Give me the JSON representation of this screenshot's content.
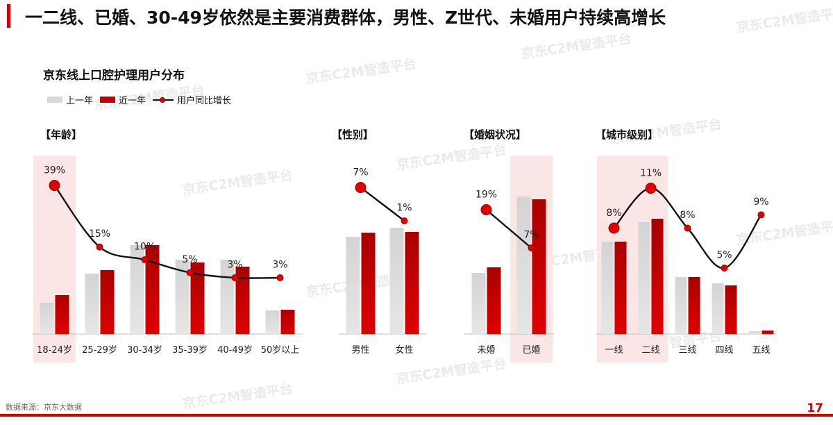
{
  "page_title": "一二线、已婚、30-49岁依然是主要消费群体，男性、Z世代、未婚用户持续高增长",
  "chart_title": "京东线上口腔护理用户分布",
  "watermark_text": "京东C2M智造平台",
  "legend": [
    {
      "label": "上一年",
      "color": "#d9d9d9"
    },
    {
      "label": "近一年",
      "color": "#c00000"
    },
    {
      "label": "用户同比增长",
      "color": "#111111"
    }
  ],
  "source": "数据来源：京东大数据",
  "page_number": "17",
  "colors": {
    "prev": "#d9d9d9",
    "curr": "#c00000",
    "highlight": "#fbe6e6",
    "marker": "#e00000"
  },
  "chart_data": [
    {
      "type": "bar",
      "title": "【年龄】",
      "categories": [
        "18-24岁",
        "25-29岁",
        "30-34岁",
        "35-39岁",
        "40-49岁",
        "50岁以上"
      ],
      "series": [
        {
          "name": "上一年",
          "values": [
            45,
            87,
            128,
            107,
            107,
            34
          ]
        },
        {
          "name": "近一年",
          "values": [
            56,
            92,
            128,
            103,
            97,
            35
          ]
        }
      ],
      "growth": {
        "name": "用户同比增长",
        "values": [
          39,
          15,
          10,
          5,
          3,
          3
        ],
        "labels": [
          "39%",
          "15%",
          "10%",
          "5%",
          "3%",
          "3%"
        ]
      },
      "highlight": [
        0
      ]
    },
    {
      "type": "bar",
      "title": "【性别】",
      "categories": [
        "男性",
        "女性"
      ],
      "series": [
        {
          "name": "上一年",
          "values": [
            140,
            153
          ]
        },
        {
          "name": "近一年",
          "values": [
            146,
            147
          ]
        }
      ],
      "growth": {
        "name": "用户同比增长",
        "values": [
          7,
          1
        ],
        "labels": [
          "7%",
          "1%"
        ]
      },
      "highlight": []
    },
    {
      "type": "bar",
      "title": "【婚姻状况】",
      "categories": [
        "未婚",
        "已婚"
      ],
      "series": [
        {
          "name": "上一年",
          "values": [
            88,
            198
          ]
        },
        {
          "name": "近一年",
          "values": [
            96,
            194
          ]
        }
      ],
      "growth": {
        "name": "用户同比增长",
        "values": [
          19,
          7
        ],
        "labels": [
          "19%",
          "7%"
        ]
      },
      "highlight": [
        1
      ]
    },
    {
      "type": "bar",
      "title": "【城市级别】",
      "categories": [
        "一线",
        "二线",
        "三线",
        "四线",
        "五线"
      ],
      "series": [
        {
          "name": "上一年",
          "values": [
            133,
            161,
            82,
            73,
            4
          ]
        },
        {
          "name": "近一年",
          "values": [
            133,
            166,
            82,
            70,
            5
          ]
        }
      ],
      "growth": {
        "name": "用户同比增长",
        "values": [
          8,
          11,
          8,
          5,
          9
        ],
        "labels": [
          "8%",
          "11%",
          "8%",
          "5%",
          "9%"
        ]
      },
      "highlight": [
        0,
        1
      ]
    }
  ]
}
